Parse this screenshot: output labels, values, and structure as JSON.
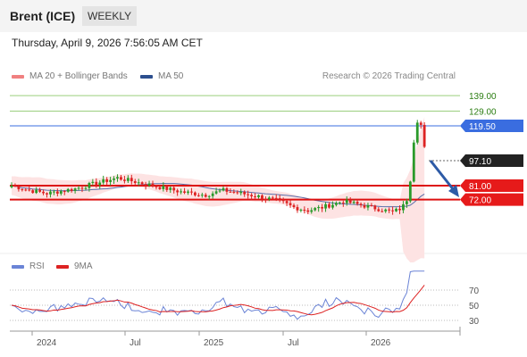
{
  "header": {
    "instrument": "Brent (ICE)",
    "period": "WEEKLY"
  },
  "timestamp": "Thursday, April 9, 2026 7:56:05 AM CET",
  "legend": {
    "bollinger": {
      "label": "MA 20 + Bollinger Bands",
      "color": "#f08080"
    },
    "ma50": {
      "label": "MA 50",
      "color": "#2d4f8e"
    }
  },
  "copyright": "Research © 2026 Trading Central",
  "rsi_legend": {
    "rsi": {
      "label": "RSI",
      "color": "#6b84d6"
    },
    "ma9": {
      "label": "9MA",
      "color": "#dd2222"
    }
  },
  "chart_data": {
    "type": "candlestick",
    "price_levels": [
      {
        "label": "139.00",
        "value": 139.0,
        "style": "green-line"
      },
      {
        "label": "129.00",
        "value": 129.0,
        "style": "green-line"
      },
      {
        "label": "119.50",
        "value": 119.5,
        "style": "blue-line"
      },
      {
        "label": "97.10",
        "value": 97.1,
        "style": "last-price"
      },
      {
        "label": "81.00",
        "value": 81.0,
        "style": "red-line"
      },
      {
        "label": "72.00",
        "value": 72.0,
        "style": "red-line"
      }
    ],
    "x_ticks": [
      "2024",
      "Jul",
      "2025",
      "Jul",
      "2026"
    ],
    "rsi_ticks": [
      "70",
      "50",
      "30"
    ],
    "colors": {
      "bull": "#2a9a2a",
      "bear": "#dd2222",
      "band": "#fde3e3",
      "ma50": "#5a6faa"
    },
    "arrow": "down"
  }
}
